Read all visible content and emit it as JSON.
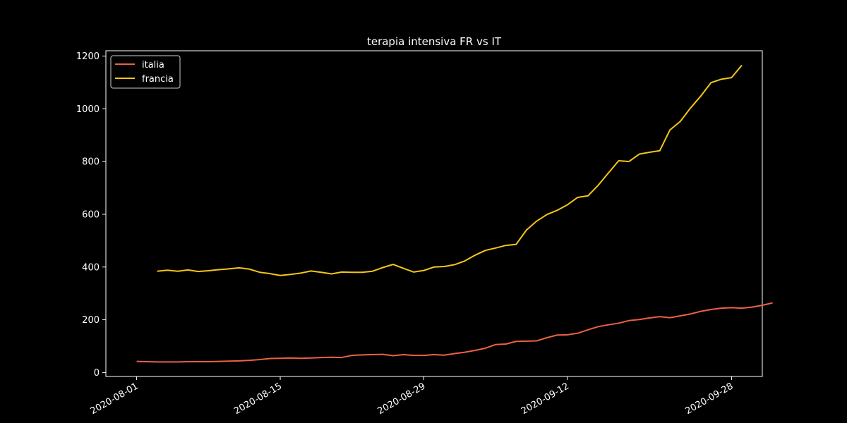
{
  "chart_data": {
    "type": "line",
    "title": "terapia intensiva FR vs IT",
    "xlabel": "",
    "ylabel": "",
    "x_start": "2020-08-01",
    "x_end": "2020-09-28",
    "xlim": [
      "2020-07-29",
      "2020-10-01"
    ],
    "ylim": [
      -15,
      1220
    ],
    "xticks": [
      "2020-08-01",
      "2020-08-15",
      "2020-08-29",
      "2020-09-12",
      "2020-09-28"
    ],
    "yticks": [
      0,
      200,
      400,
      600,
      800,
      1000,
      1200
    ],
    "grid": false,
    "legend": "top-left",
    "series": [
      {
        "name": "italia",
        "color": "#ee6044",
        "start": "2020-08-01",
        "values": [
          42,
          41,
          40,
          40,
          40,
          41,
          41,
          41,
          42,
          43,
          44,
          46,
          49,
          53,
          54,
          55,
          54,
          55,
          57,
          58,
          57,
          65,
          67,
          68,
          69,
          64,
          68,
          65,
          65,
          68,
          66,
          72,
          77,
          84,
          92,
          106,
          108,
          118,
          119,
          120,
          132,
          142,
          143,
          149,
          162,
          174,
          181,
          187,
          197,
          201,
          207,
          212,
          208,
          215,
          222,
          232,
          239,
          244,
          246,
          244,
          248,
          255,
          264
        ]
      },
      {
        "name": "francia",
        "color": "#f5c518",
        "start": "2020-08-03",
        "values": [
          384,
          388,
          384,
          389,
          383,
          386,
          390,
          393,
          397,
          392,
          380,
          375,
          368,
          372,
          377,
          385,
          380,
          374,
          381,
          380,
          380,
          384,
          398,
          410,
          395,
          381,
          387,
          400,
          402,
          409,
          423,
          445,
          463,
          472,
          482,
          486,
          540,
          574,
          599,
          615,
          636,
          664,
          670,
          710,
          757,
          803,
          800,
          828,
          835,
          841,
          920,
          952,
          1003,
          1048,
          1099,
          1112,
          1118,
          1165
        ]
      }
    ]
  }
}
